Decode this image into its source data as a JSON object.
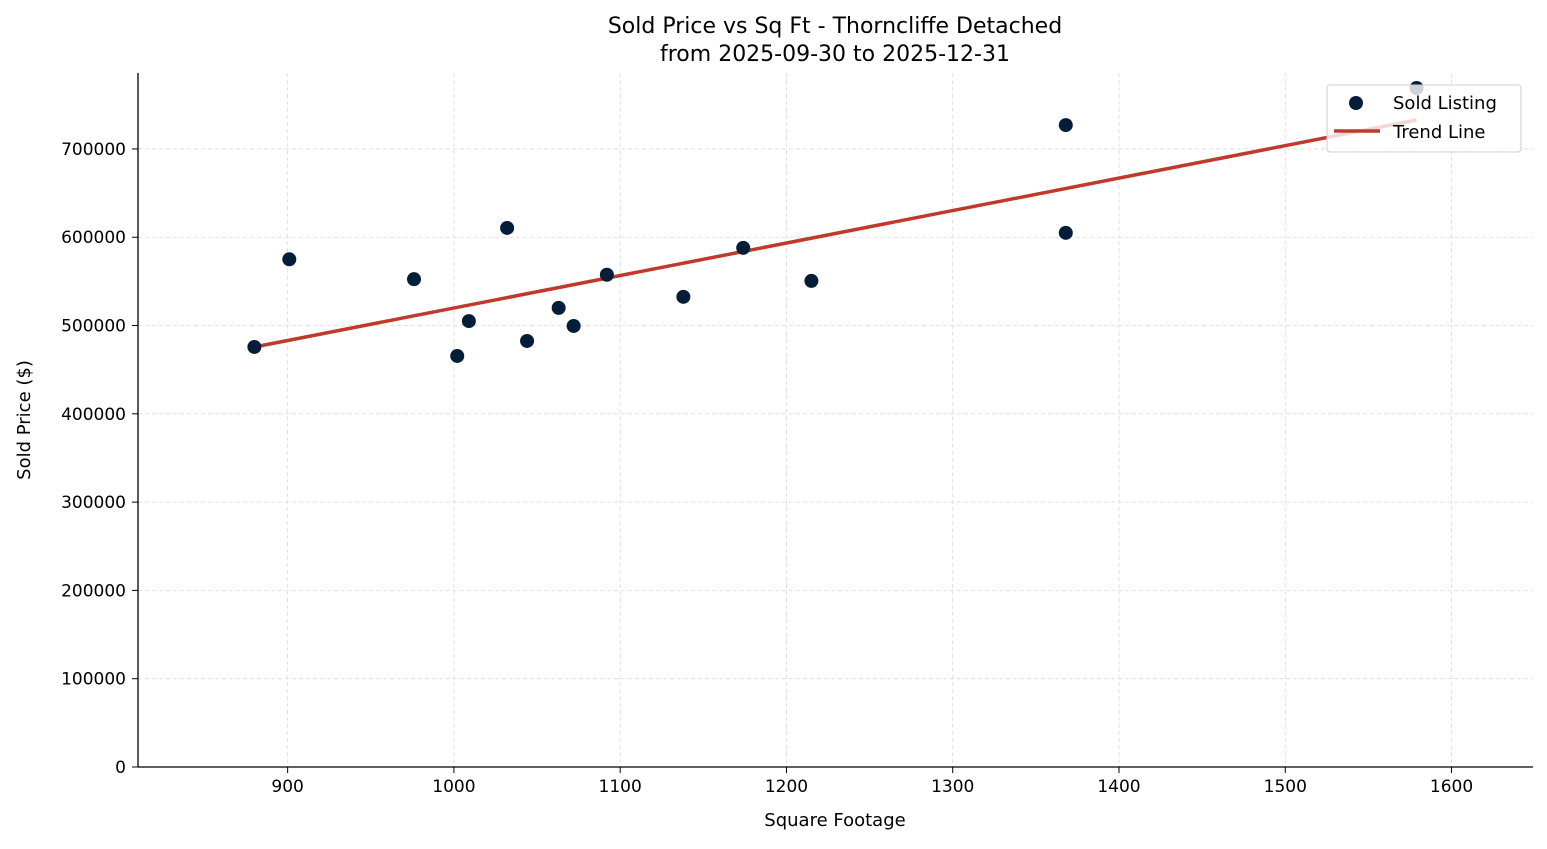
{
  "chart_data": {
    "type": "scatter",
    "title": "Sold Price vs Sq Ft - Thorncliffe Detached",
    "subtitle": "from 2025-09-30 to 2025-12-31",
    "xlabel": "Square Footage",
    "ylabel": "Sold Price ($)",
    "xlim": [
      810,
      1649
    ],
    "ylim": [
      0,
      786000
    ],
    "xticks": [
      900,
      1000,
      1100,
      1200,
      1300,
      1400,
      1500,
      1600
    ],
    "yticks": [
      0,
      100000,
      200000,
      300000,
      400000,
      500000,
      600000,
      700000
    ],
    "grid": true,
    "legend": "top-right",
    "series": [
      {
        "name": "Sold Listing",
        "type": "scatter",
        "color": "#041e3a",
        "points": [
          [
            880,
            475700
          ],
          [
            901,
            575000
          ],
          [
            976,
            552500
          ],
          [
            1002,
            465500
          ],
          [
            1009,
            505000
          ],
          [
            1032,
            610500
          ],
          [
            1044,
            482500
          ],
          [
            1063,
            520000
          ],
          [
            1072,
            499500
          ],
          [
            1092,
            557500
          ],
          [
            1138,
            532500
          ],
          [
            1174,
            588000
          ],
          [
            1215,
            550500
          ],
          [
            1368,
            605000
          ],
          [
            1368,
            727000
          ],
          [
            1579,
            769000
          ]
        ]
      },
      {
        "name": "Trend Line",
        "type": "line",
        "color": "#c0392b",
        "points": [
          [
            880,
            475700
          ],
          [
            1579,
            732800
          ]
        ]
      }
    ]
  }
}
